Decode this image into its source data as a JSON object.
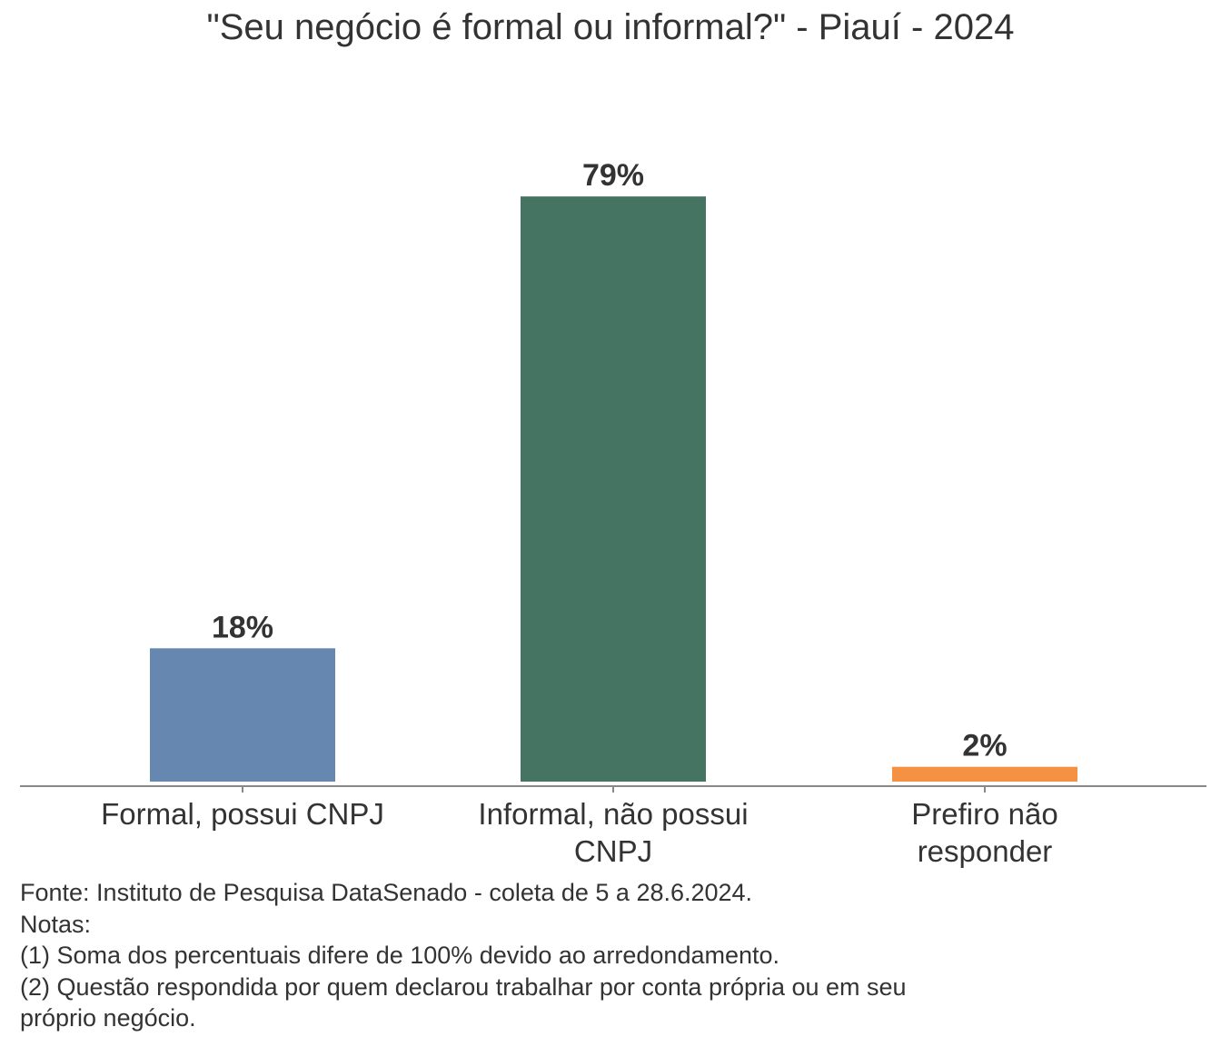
{
  "chart_data": {
    "type": "bar",
    "title": "\"Seu negócio é formal ou informal?\" - Piauí - 2024",
    "categories": [
      [
        "Formal, possui CNPJ"
      ],
      [
        "Informal, não possui",
        "CNPJ"
      ],
      [
        "Prefiro não",
        "responder"
      ]
    ],
    "values": [
      18,
      79,
      2
    ],
    "value_labels": [
      "18%",
      "79%",
      "2%"
    ],
    "colors": [
      "#6688b0",
      "#457462",
      "#f49143"
    ],
    "ylim": [
      0,
      80
    ],
    "grid": false,
    "legend": "none",
    "xlabel": "",
    "ylabel": ""
  },
  "footnotes": {
    "source": "Fonte: Instituto de Pesquisa DataSenado - coleta de 5 a 28.6.2024.",
    "notes_heading": "Notas:",
    "note_1": "(1) Soma dos percentuais difere de 100% devido ao arredondamento.",
    "note_2_line_1": "(2) Questão respondida por quem declarou trabalhar por conta própria ou em seu",
    "note_2_line_2": "próprio negócio."
  },
  "style": {
    "axis_color": "#888888",
    "text_color": "#333333"
  }
}
